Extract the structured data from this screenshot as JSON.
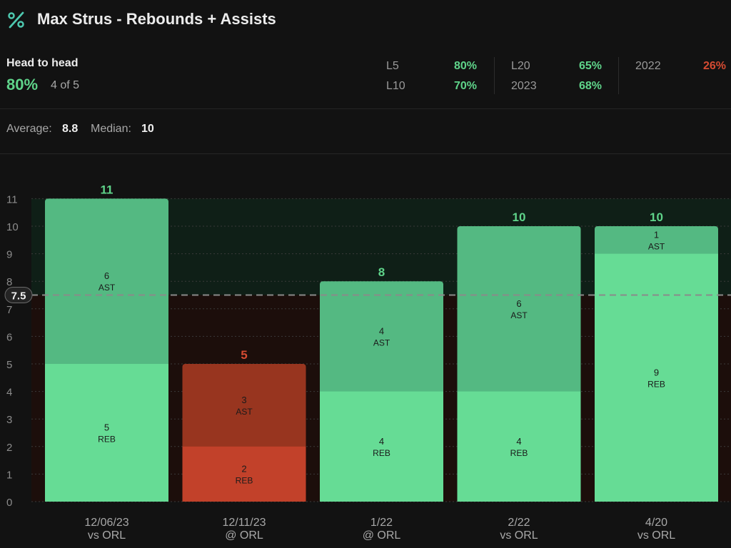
{
  "header": {
    "title": "Max Strus - Rebounds + Assists",
    "icon": "percent-icon"
  },
  "head_to_head": {
    "label": "Head to head",
    "percent": "80%",
    "count": "4 of 5"
  },
  "splits": [
    {
      "label": "L5",
      "value": "80%",
      "status": "good"
    },
    {
      "label": "L10",
      "value": "70%",
      "status": "good"
    },
    {
      "label": "L20",
      "value": "65%",
      "status": "good"
    },
    {
      "label": "2023",
      "value": "68%",
      "status": "good"
    },
    {
      "label": "2022",
      "value": "26%",
      "status": "bad"
    }
  ],
  "summary": {
    "average_label": "Average:",
    "average_value": "8.8",
    "median_label": "Median:",
    "median_value": "10"
  },
  "colors": {
    "background": "#121212",
    "good": "#5fd48a",
    "bad": "#d64b32",
    "reb_good": "#66dc95",
    "ast_good": "#54b982",
    "reb_bad": "#c2412a",
    "ast_bad": "#98351f"
  },
  "chart_data": {
    "type": "bar",
    "stacked": true,
    "line": 7.5,
    "line_label": "7.5",
    "ylim": [
      0,
      11
    ],
    "yticks": [
      "0",
      "1",
      "2",
      "3",
      "4",
      "5",
      "6",
      "7",
      "8",
      "9",
      "10",
      "11"
    ],
    "grid": true,
    "categories": [
      {
        "date": "12/06/23",
        "opponent": "vs ORL"
      },
      {
        "date": "12/11/23",
        "opponent": "@ ORL"
      },
      {
        "date": "1/22",
        "opponent": "@ ORL"
      },
      {
        "date": "2/22",
        "opponent": "vs ORL"
      },
      {
        "date": "4/20",
        "opponent": "vs ORL"
      }
    ],
    "totals": [
      "11",
      "5",
      "8",
      "10",
      "10"
    ],
    "series": [
      {
        "name": "REB",
        "values": [
          5,
          2,
          4,
          4,
          9
        ]
      },
      {
        "name": "AST",
        "values": [
          6,
          3,
          4,
          6,
          1
        ]
      }
    ]
  }
}
